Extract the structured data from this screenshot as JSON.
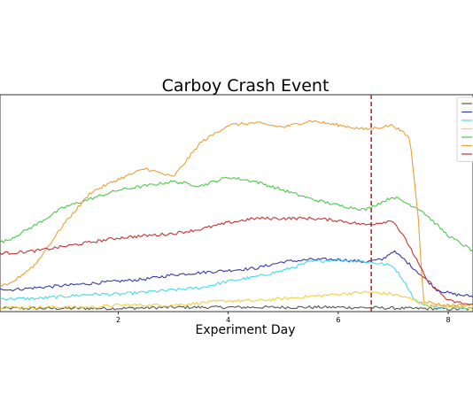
{
  "chart_data": {
    "type": "line",
    "title": "Carboy Crash Event",
    "xlabel": "Experiment Day",
    "ylabel": "",
    "xlim": [
      -0.15,
      8.45
    ],
    "ylim": [
      0,
      100
    ],
    "x_ticks": [
      2,
      4,
      6,
      8
    ],
    "x_tick_labels": [
      "2",
      "4",
      "6",
      "8"
    ],
    "grid": false,
    "legend_position": "top-right",
    "event_line": {
      "x": 6.6,
      "color": "#cc2222",
      "style": "dashed"
    },
    "series": [
      {
        "color": "#555555",
        "x": [
          -0.15,
          0,
          1,
          2,
          3,
          4,
          5,
          6,
          6.6,
          7,
          7.4,
          7.7,
          8,
          8.45
        ],
        "values": [
          1.5,
          1.5,
          1.5,
          1.5,
          2,
          2,
          2,
          2,
          1.8,
          1.6,
          1.4,
          1.4,
          1.2,
          1.2
        ]
      },
      {
        "color": "#3a3aa8",
        "x": [
          -0.15,
          0,
          0.5,
          1,
          1.5,
          2,
          2.5,
          3,
          3.5,
          4,
          4.5,
          5,
          5.5,
          6,
          6.5,
          6.8,
          7,
          7.2,
          7.5,
          7.8,
          8.1,
          8.45
        ],
        "values": [
          11,
          10,
          11,
          12,
          13,
          14,
          15,
          17,
          18,
          19,
          20,
          23,
          24,
          24,
          23,
          24,
          28,
          24,
          17,
          10,
          8,
          7
        ]
      },
      {
        "color": "#4ad8e8",
        "x": [
          -0.15,
          0,
          0.5,
          1,
          1.5,
          2,
          2.5,
          3,
          3.5,
          4,
          4.5,
          5,
          5.5,
          6,
          6.5,
          6.8,
          7,
          7.2,
          7.4,
          7.6,
          7.8,
          8.1,
          8.45
        ],
        "values": [
          6,
          6,
          6,
          7,
          8,
          8,
          9,
          10,
          11,
          14,
          16,
          19,
          23,
          24,
          23,
          22,
          21,
          14,
          5,
          3,
          2,
          2,
          2
        ]
      },
      {
        "color": "#f0d040",
        "x": [
          -0.15,
          0,
          0.5,
          1,
          1.5,
          2,
          2.5,
          3,
          3.5,
          4,
          4.5,
          5,
          5.5,
          6,
          6.5,
          7,
          7.3,
          7.6,
          8,
          8.45
        ],
        "values": [
          2,
          2,
          2,
          2,
          2,
          3,
          3,
          3,
          4,
          5,
          5,
          6,
          7,
          8,
          9,
          8,
          6,
          3,
          2,
          2
        ]
      },
      {
        "color": "#50c850",
        "x": [
          -0.15,
          0,
          0.5,
          1,
          1.5,
          2,
          2.5,
          3,
          3.5,
          4,
          4.5,
          5,
          5.5,
          6,
          6.5,
          7,
          7.5,
          8,
          8.45
        ],
        "values": [
          32,
          33,
          40,
          48,
          52,
          56,
          58,
          60,
          58,
          62,
          60,
          56,
          52,
          49,
          47,
          53,
          47,
          35,
          28
        ]
      },
      {
        "color": "#e8a038",
        "x": [
          -0.15,
          0,
          0.5,
          1,
          1.5,
          2,
          2.5,
          3,
          3.5,
          4,
          4.5,
          5,
          5.5,
          6,
          6.5,
          7,
          7.3,
          7.45,
          7.55,
          7.7,
          7.9,
          8.45
        ],
        "values": [
          12,
          12,
          22,
          40,
          55,
          61,
          66,
          62,
          78,
          86,
          87,
          85,
          88,
          86,
          84,
          86,
          80,
          45,
          5,
          4,
          3,
          3
        ]
      },
      {
        "color": "#cc3030",
        "x": [
          -0.15,
          0,
          0.5,
          1,
          1.5,
          2,
          2.5,
          3,
          3.5,
          4,
          4.5,
          5,
          5.5,
          6,
          6.5,
          7,
          7.3,
          7.6,
          8,
          8.45
        ],
        "values": [
          27,
          27,
          28,
          30,
          32,
          34,
          35,
          36,
          38,
          41,
          43,
          43,
          43,
          42,
          40,
          42,
          30,
          15,
          5,
          3
        ]
      }
    ]
  }
}
